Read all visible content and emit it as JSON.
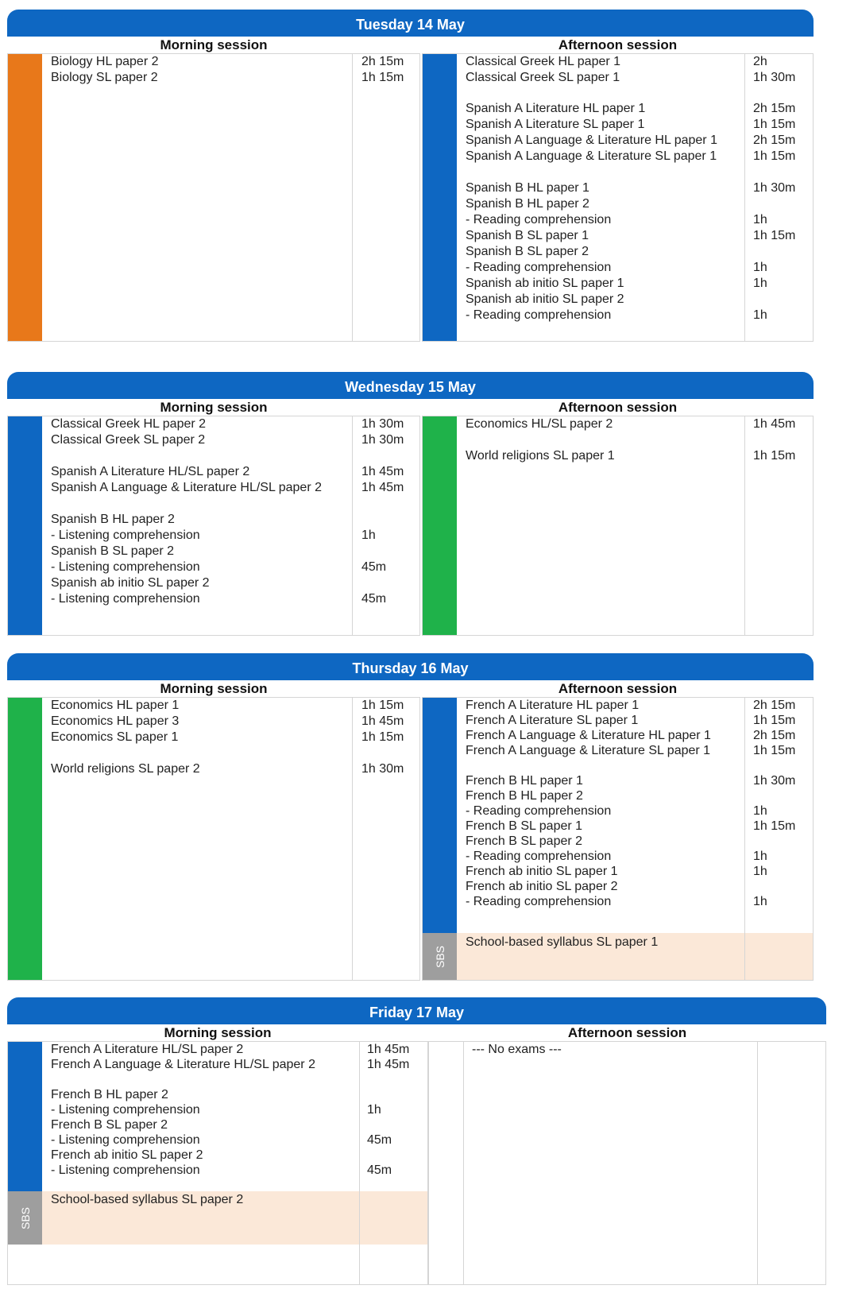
{
  "days": [
    {
      "title": "Tuesday 14 May",
      "morning_label": "Morning session",
      "afternoon_label": "Afternoon session",
      "morning": [
        {
          "name": "Biology HL paper 2",
          "dur": "2h 15m"
        },
        {
          "name": "Biology SL paper 2",
          "dur": "1h 15m"
        }
      ],
      "afternoon": [
        {
          "name": "Classical Greek HL paper 1",
          "dur": "2h"
        },
        {
          "name": "Classical Greek SL paper 1",
          "dur": "1h 30m"
        },
        {
          "name": "Spanish A Literature HL paper 1",
          "dur": "2h 15m"
        },
        {
          "name": "Spanish A Literature SL paper 1",
          "dur": "1h 15m"
        },
        {
          "name": "Spanish A Language & Literature HL paper 1",
          "dur": "2h 15m"
        },
        {
          "name": "Spanish A Language & Literature SL paper 1",
          "dur": "1h 15m"
        },
        {
          "name": "Spanish B HL paper 1",
          "dur": "1h 30m"
        },
        {
          "name": "Spanish B HL paper 2",
          "dur": ""
        },
        {
          "name": "- Reading comprehension",
          "dur": "1h"
        },
        {
          "name": "Spanish B SL paper 1",
          "dur": "1h 15m"
        },
        {
          "name": "Spanish B SL paper 2",
          "dur": ""
        },
        {
          "name": "- Reading comprehension",
          "dur": "1h"
        },
        {
          "name": "Spanish ab initio SL paper 1",
          "dur": "1h"
        },
        {
          "name": "Spanish ab initio SL paper 2",
          "dur": ""
        },
        {
          "name": "- Reading comprehension",
          "dur": "1h"
        }
      ]
    },
    {
      "title": "Wednesday 15 May",
      "morning_label": "Morning session",
      "afternoon_label": "Afternoon session",
      "morning": [
        {
          "name": "Classical Greek HL paper 2",
          "dur": "1h 30m"
        },
        {
          "name": "Classical Greek SL paper 2",
          "dur": "1h 30m"
        },
        {
          "name": "Spanish A Literature HL/SL paper 2",
          "dur": "1h 45m"
        },
        {
          "name": "Spanish A Language & Literature HL/SL paper 2",
          "dur": "1h 45m"
        },
        {
          "name": "Spanish B HL paper 2",
          "dur": ""
        },
        {
          "name": "- Listening comprehension",
          "dur": "1h"
        },
        {
          "name": "Spanish B SL paper 2",
          "dur": ""
        },
        {
          "name": "- Listening comprehension",
          "dur": "45m"
        },
        {
          "name": "Spanish ab initio SL paper 2",
          "dur": ""
        },
        {
          "name": "- Listening comprehension",
          "dur": "45m"
        }
      ],
      "afternoon": [
        {
          "name": "Economics HL/SL paper 2",
          "dur": "1h 45m"
        },
        {
          "name": "World religions SL paper 1",
          "dur": "1h 15m"
        }
      ]
    },
    {
      "title": "Thursday 16 May",
      "morning_label": "Morning session",
      "afternoon_label": "Afternoon session",
      "morning": [
        {
          "name": "Economics HL paper 1",
          "dur": "1h 15m"
        },
        {
          "name": "Economics HL paper 3",
          "dur": "1h 45m"
        },
        {
          "name": "Economics SL paper 1",
          "dur": "1h 15m"
        },
        {
          "name": "World religions SL paper 2",
          "dur": "1h 30m"
        }
      ],
      "afternoon": [
        {
          "name": "French A Literature HL paper 1",
          "dur": "2h 15m"
        },
        {
          "name": "French A Literature SL paper 1",
          "dur": "1h 15m"
        },
        {
          "name": "French A Language & Literature HL paper 1",
          "dur": "2h 15m"
        },
        {
          "name": "French A Language & Literature SL paper 1",
          "dur": "1h 15m"
        },
        {
          "name": "French B HL paper 1",
          "dur": "1h 30m"
        },
        {
          "name": "French B HL paper 2",
          "dur": ""
        },
        {
          "name": "- Reading comprehension",
          "dur": "1h"
        },
        {
          "name": "French B SL paper 1",
          "dur": "1h 15m"
        },
        {
          "name": "French B SL paper 2",
          "dur": ""
        },
        {
          "name": "- Reading comprehension",
          "dur": "1h"
        },
        {
          "name": "French ab initio SL paper 1",
          "dur": "1h"
        },
        {
          "name": "French ab initio SL paper 2",
          "dur": ""
        },
        {
          "name": "- Reading comprehension",
          "dur": "1h"
        }
      ],
      "afternoon_sbs": {
        "tag": "SBS",
        "name": "School-based syllabus SL paper 1"
      }
    },
    {
      "title": "Friday 17 May",
      "morning_label": "Morning session",
      "afternoon_label": "Afternoon session",
      "morning": [
        {
          "name": "French A Literature HL/SL paper 2",
          "dur": "1h 45m"
        },
        {
          "name": "French A Language & Literature HL/SL paper 2",
          "dur": "1h 45m"
        },
        {
          "name": "French B HL paper 2",
          "dur": ""
        },
        {
          "name": "- Listening comprehension",
          "dur": "1h"
        },
        {
          "name": "French B SL paper 2",
          "dur": ""
        },
        {
          "name": "- Listening comprehension",
          "dur": "45m"
        },
        {
          "name": "French ab initio SL paper 2",
          "dur": ""
        },
        {
          "name": "- Listening comprehension",
          "dur": "45m"
        }
      ],
      "morning_sbs": {
        "tag": "SBS",
        "name": "School-based syllabus SL paper 2"
      },
      "afternoon_note": "--- No exams ---"
    }
  ],
  "colors": {
    "header": "#0e67c2",
    "orange": "#e8781a",
    "blue": "#0e67c2",
    "green": "#1fb24a",
    "sbs": "#9e9e9e",
    "sbs_bg": "#fbe8d8"
  }
}
